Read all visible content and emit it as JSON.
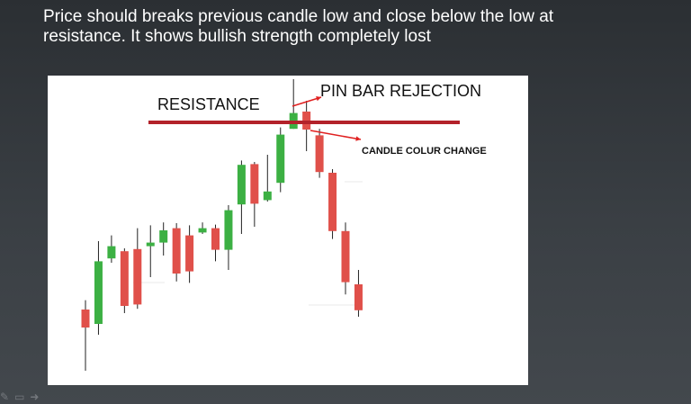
{
  "slide": {
    "text_line1": "Price should breaks previous candle low  and close below the low at",
    "text_line2": "resistance. It shows bullish strength completely lost"
  },
  "annotations": {
    "resistance": "RESISTANCE",
    "pin_bar": "PIN BAR REJECTION",
    "colour_change": "CANDLE COLUR CHANGE"
  },
  "colors": {
    "bull": "#3cb043",
    "bear": "#e0504a",
    "resistance_line": "#b3222a",
    "arrow": "#e02020"
  },
  "icons": [
    "pen-icon",
    "screen-icon",
    "arrow-right-icon"
  ],
  "chart_data": {
    "type": "candlestick",
    "y_direction": "price",
    "candles": [
      {
        "dir": "bear",
        "open": 105,
        "close": 80,
        "high": 118,
        "low": 20
      },
      {
        "dir": "bull",
        "open": 85,
        "close": 172,
        "high": 200,
        "low": 70
      },
      {
        "dir": "bull",
        "open": 176,
        "close": 193,
        "high": 208,
        "low": 170
      },
      {
        "dir": "bear",
        "open": 186,
        "close": 110,
        "high": 190,
        "low": 100
      },
      {
        "dir": "bear",
        "open": 189,
        "close": 112,
        "high": 218,
        "low": 106
      },
      {
        "dir": "bull",
        "open": 193,
        "close": 198,
        "high": 222,
        "low": 150
      },
      {
        "dir": "bull",
        "open": 198,
        "close": 215,
        "high": 226,
        "low": 180
      },
      {
        "dir": "bear",
        "open": 218,
        "close": 155,
        "high": 225,
        "low": 144
      },
      {
        "dir": "bear",
        "open": 208,
        "close": 158,
        "high": 222,
        "low": 142
      },
      {
        "dir": "bull",
        "open": 212,
        "close": 218,
        "high": 226,
        "low": 210
      },
      {
        "dir": "bear",
        "open": 218,
        "close": 188,
        "high": 223,
        "low": 172
      },
      {
        "dir": "bull",
        "open": 188,
        "close": 243,
        "high": 250,
        "low": 160
      },
      {
        "dir": "bull",
        "open": 251,
        "close": 306,
        "high": 312,
        "low": 210
      },
      {
        "dir": "bear",
        "open": 307,
        "close": 252,
        "high": 310,
        "low": 220
      },
      {
        "dir": "bull",
        "open": 257,
        "close": 269,
        "high": 320,
        "low": 255
      },
      {
        "dir": "bull",
        "open": 281,
        "close": 348,
        "high": 358,
        "low": 268
      },
      {
        "dir": "bull",
        "open": 356,
        "close": 378,
        "high": 425,
        "low": 356
      },
      {
        "dir": "bear",
        "open": 380,
        "close": 355,
        "high": 395,
        "low": 325
      },
      {
        "dir": "bear",
        "open": 347,
        "close": 296,
        "high": 356,
        "low": 288
      },
      {
        "dir": "bear",
        "open": 295,
        "close": 214,
        "high": 300,
        "low": 203
      },
      {
        "dir": "bear",
        "open": 214,
        "close": 143,
        "high": 226,
        "low": 126
      },
      {
        "dir": "bear",
        "open": 140,
        "close": 104,
        "high": 160,
        "low": 95
      }
    ],
    "resistance_level": 365
  }
}
